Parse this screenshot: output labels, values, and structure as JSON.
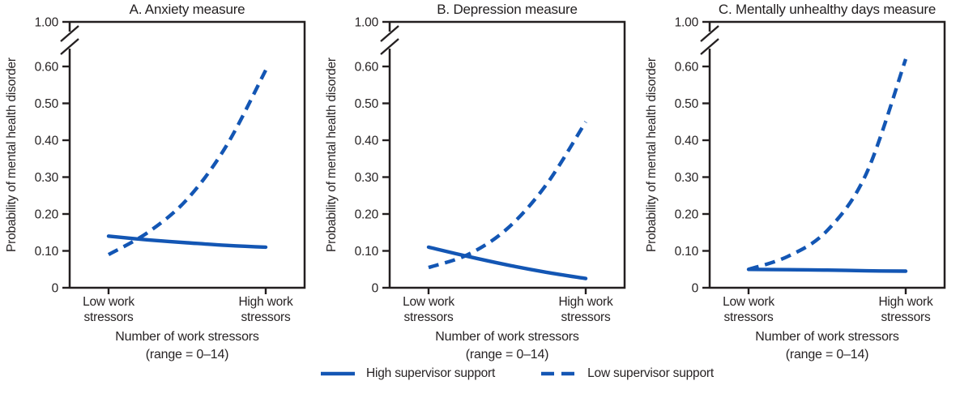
{
  "figure": {
    "y_axis_label": "Probability of mental health disorder",
    "x_axis_title": "Number of work stressors",
    "x_axis_range": "(range = 0–14)",
    "x_tick_labels": [
      {
        "line1": "Low work",
        "line2": "stressors"
      },
      {
        "line1": "High work",
        "line2": "stressors"
      }
    ],
    "y_ticks": [
      {
        "value": 0,
        "label": "0"
      },
      {
        "value": 0.1,
        "label": "0.10"
      },
      {
        "value": 0.2,
        "label": "0.20"
      },
      {
        "value": 0.3,
        "label": "0.30"
      },
      {
        "value": 0.4,
        "label": "0.40"
      },
      {
        "value": 0.5,
        "label": "0.50"
      },
      {
        "value": 0.6,
        "label": "0.60"
      },
      {
        "value": 1.0,
        "label": "1.00"
      }
    ],
    "colors": {
      "line_blue": "#1356b4",
      "axis_black": "#231f20",
      "text_dark": "#272324",
      "background": "#ffffff"
    },
    "legend": [
      {
        "label": "High supervisor support",
        "style": "solid"
      },
      {
        "label": "Low supervisor support",
        "style": "dashed"
      }
    ]
  },
  "chart_data": [
    {
      "type": "line",
      "title": "A. Anxiety measure",
      "xlabel": "Number of work stressors (range = 0–14)",
      "ylabel": "Probability of mental health disorder",
      "x_categories": [
        "Low work stressors",
        "High work stressors"
      ],
      "ylim": [
        0,
        1.0
      ],
      "y_axis_break_between": [
        0.65,
        1.0
      ],
      "grid": false,
      "legend_position": "bottom-center",
      "series": [
        {
          "name": "High supervisor support",
          "style": "solid",
          "x_fraction": [
            0,
            0.25,
            0.5,
            0.75,
            1
          ],
          "values": [
            0.14,
            0.13,
            0.122,
            0.115,
            0.11
          ]
        },
        {
          "name": "Low supervisor support",
          "style": "dashed",
          "x_fraction": [
            0,
            0.25,
            0.5,
            0.75,
            1
          ],
          "values": [
            0.09,
            0.15,
            0.24,
            0.385,
            0.59
          ]
        }
      ]
    },
    {
      "type": "line",
      "title": "B. Depression measure",
      "xlabel": "Number of work stressors (range = 0–14)",
      "ylabel": "Probability of mental health disorder",
      "x_categories": [
        "Low work stressors",
        "High work stressors"
      ],
      "ylim": [
        0,
        1.0
      ],
      "y_axis_break_between": [
        0.65,
        1.0
      ],
      "grid": false,
      "legend_position": "bottom-center",
      "series": [
        {
          "name": "High supervisor support",
          "style": "solid",
          "x_fraction": [
            0,
            0.25,
            0.5,
            0.75,
            1
          ],
          "values": [
            0.11,
            0.085,
            0.062,
            0.042,
            0.025
          ]
        },
        {
          "name": "Low supervisor support",
          "style": "dashed",
          "x_fraction": [
            0,
            0.25,
            0.5,
            0.75,
            1
          ],
          "values": [
            0.055,
            0.09,
            0.16,
            0.28,
            0.45
          ]
        }
      ]
    },
    {
      "type": "line",
      "title": "C. Mentally unhealthy days measure",
      "xlabel": "Number of work stressors (range = 0–14)",
      "ylabel": "Probability of mental health disorder",
      "x_categories": [
        "Low work stressors",
        "High work stressors"
      ],
      "ylim": [
        0,
        1.0
      ],
      "y_axis_break_between": [
        0.65,
        1.0
      ],
      "grid": false,
      "legend_position": "bottom-center",
      "series": [
        {
          "name": "High supervisor support",
          "style": "solid",
          "x_fraction": [
            0,
            0.25,
            0.5,
            0.75,
            1
          ],
          "values": [
            0.05,
            0.049,
            0.048,
            0.046,
            0.045
          ]
        },
        {
          "name": "Low supervisor support",
          "style": "dashed",
          "x_fraction": [
            0,
            0.25,
            0.5,
            0.75,
            1
          ],
          "values": [
            0.05,
            0.085,
            0.155,
            0.31,
            0.62
          ]
        }
      ]
    }
  ]
}
